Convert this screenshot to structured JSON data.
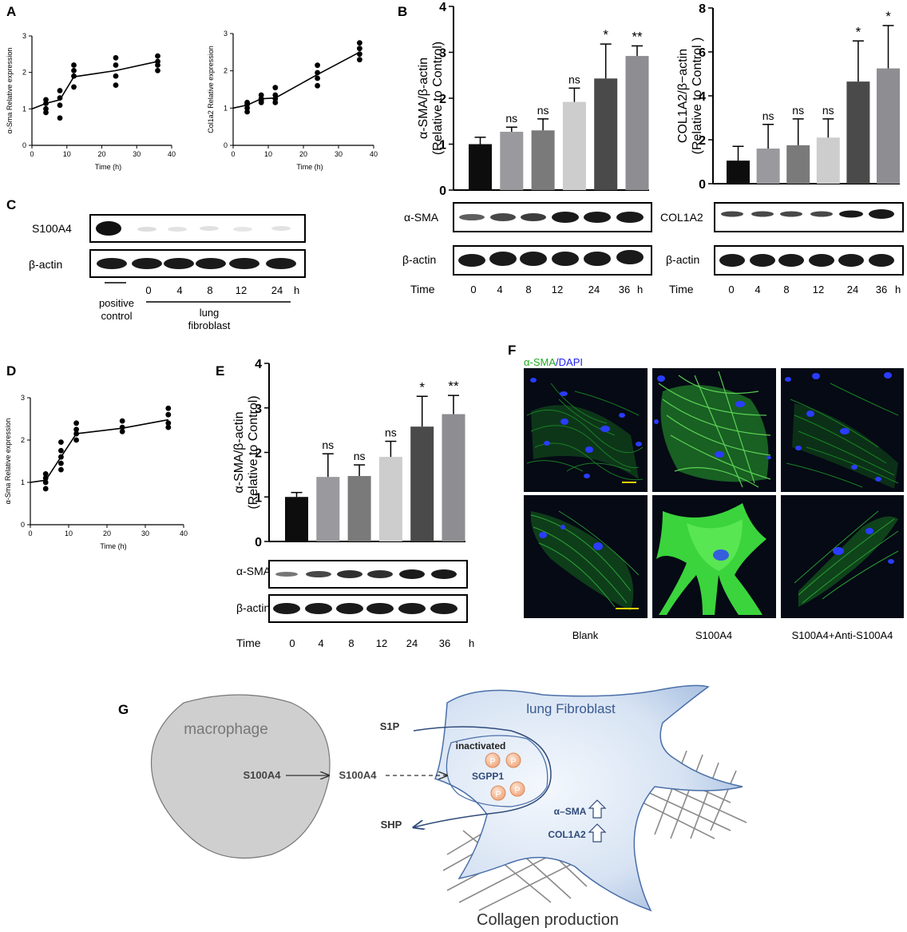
{
  "panels": {
    "A": "A",
    "B": "B",
    "C": "C",
    "D": "D",
    "E": "E",
    "F": "F",
    "G": "G"
  },
  "colors": {
    "bar_0": "#0d0d0d",
    "bar_4": "#9a9a9e",
    "bar_8": "#7a7a7a",
    "bar_12": "#cdcdcd",
    "bar_24": "#4a4a4a",
    "bar_36": "#8e8e92",
    "alpha_sma_green": "#22aa22",
    "dapi_blue": "#2222ee",
    "cell_fill": "#c9d9ee",
    "scale_bar": "#e6d200"
  },
  "chart_data": [
    {
      "id": "A1",
      "type": "scatter",
      "ylabel": "α-Sma Relative expression",
      "xlabel": "Time (h)",
      "xlim": [
        0,
        40
      ],
      "ylim": [
        0,
        3
      ],
      "xticks": [
        "0",
        "10",
        "20",
        "30",
        "40"
      ],
      "yticks": [
        "0",
        "1",
        "2",
        "3"
      ],
      "points": [
        [
          4,
          1.0
        ],
        [
          4,
          1.15
        ],
        [
          4,
          1.25
        ],
        [
          4,
          0.9
        ],
        [
          8,
          1.3
        ],
        [
          8,
          1.5
        ],
        [
          8,
          1.1
        ],
        [
          8,
          0.75
        ],
        [
          12,
          1.6
        ],
        [
          12,
          1.9
        ],
        [
          12,
          2.05
        ],
        [
          12,
          2.2
        ],
        [
          24,
          1.65
        ],
        [
          24,
          1.9
        ],
        [
          24,
          2.2
        ],
        [
          24,
          2.4
        ],
        [
          36,
          2.2
        ],
        [
          36,
          2.3
        ],
        [
          36,
          2.45
        ],
        [
          36,
          2.05
        ]
      ],
      "fit": [
        [
          0,
          1.0
        ],
        [
          4,
          1.15
        ],
        [
          8,
          1.25
        ],
        [
          12,
          1.88
        ],
        [
          24,
          2.05
        ],
        [
          36,
          2.3
        ]
      ]
    },
    {
      "id": "A2",
      "type": "scatter",
      "ylabel": "Col1a2 Relative expression",
      "xlabel": "Time (h)",
      "xlim": [
        0,
        40
      ],
      "ylim": [
        0,
        3
      ],
      "xticks": [
        "0",
        "10",
        "20",
        "30",
        "40"
      ],
      "yticks": [
        "0",
        "1",
        "2",
        "3"
      ],
      "points": [
        [
          4,
          0.9
        ],
        [
          4,
          1.0
        ],
        [
          4,
          1.1
        ],
        [
          4,
          1.15
        ],
        [
          8,
          1.15
        ],
        [
          8,
          1.25
        ],
        [
          8,
          1.35
        ],
        [
          8,
          1.2
        ],
        [
          12,
          1.15
        ],
        [
          12,
          1.25
        ],
        [
          12,
          1.35
        ],
        [
          12,
          1.55
        ],
        [
          24,
          1.6
        ],
        [
          24,
          1.8
        ],
        [
          24,
          1.95
        ],
        [
          24,
          2.15
        ],
        [
          36,
          2.3
        ],
        [
          36,
          2.45
        ],
        [
          36,
          2.6
        ],
        [
          36,
          2.75
        ]
      ],
      "fit": [
        [
          0,
          1.0
        ],
        [
          4,
          1.08
        ],
        [
          8,
          1.25
        ],
        [
          12,
          1.27
        ],
        [
          24,
          1.9
        ],
        [
          36,
          2.5
        ]
      ]
    },
    {
      "id": "B1",
      "type": "bar",
      "ylabel": "α-SMA/β-actin",
      "ylabel2": "(Relative to Control)",
      "ylim": [
        0,
        4
      ],
      "yticks": [
        "0",
        "1",
        "2",
        "3",
        "4"
      ],
      "categories": [
        "0",
        "4",
        "8",
        "12",
        "24",
        "36"
      ],
      "values": [
        1.0,
        1.27,
        1.3,
        1.92,
        2.43,
        2.92
      ],
      "errors": [
        0.15,
        0.1,
        0.25,
        0.3,
        0.75,
        0.22
      ],
      "labels": [
        "",
        "ns",
        "ns",
        "ns",
        "*",
        "**"
      ]
    },
    {
      "id": "B2",
      "type": "bar",
      "ylabel": "COL1A2/β−actin",
      "ylabel2": "(Relative to Control )",
      "ylim": [
        0,
        8
      ],
      "yticks": [
        "0",
        "2",
        "4",
        "6",
        "8"
      ],
      "categories": [
        "0",
        "4",
        "8",
        "12",
        "24",
        "36"
      ],
      "values": [
        1.05,
        1.6,
        1.75,
        2.1,
        4.65,
        5.25
      ],
      "errors": [
        0.65,
        1.1,
        1.2,
        0.85,
        1.85,
        1.95
      ],
      "labels": [
        "",
        "ns",
        "ns",
        "ns",
        "*",
        "*"
      ]
    },
    {
      "id": "D",
      "type": "scatter",
      "ylabel": "α-Sma Relative expression",
      "xlabel": "Time (h)",
      "xlim": [
        0,
        40
      ],
      "ylim": [
        0,
        3
      ],
      "xticks": [
        "0",
        "10",
        "20",
        "30",
        "40"
      ],
      "yticks": [
        "0",
        "1",
        "2",
        "3"
      ],
      "points": [
        [
          4,
          0.85
        ],
        [
          4,
          1.0
        ],
        [
          4,
          1.1
        ],
        [
          4,
          1.2
        ],
        [
          8,
          1.3
        ],
        [
          8,
          1.45
        ],
        [
          8,
          1.6
        ],
        [
          8,
          1.75
        ],
        [
          8,
          1.95
        ],
        [
          12,
          2.0
        ],
        [
          12,
          2.15
        ],
        [
          12,
          2.25
        ],
        [
          12,
          2.4
        ],
        [
          24,
          2.2
        ],
        [
          24,
          2.3
        ],
        [
          24,
          2.45
        ],
        [
          36,
          2.3
        ],
        [
          36,
          2.4
        ],
        [
          36,
          2.6
        ],
        [
          36,
          2.75
        ]
      ],
      "fit": [
        [
          0,
          1.0
        ],
        [
          4,
          1.05
        ],
        [
          8,
          1.6
        ],
        [
          12,
          2.15
        ],
        [
          24,
          2.28
        ],
        [
          36,
          2.48
        ]
      ]
    },
    {
      "id": "E",
      "type": "bar",
      "ylabel": "α-SMA/β-actin",
      "ylabel2": "(Relative to Control)",
      "ylim": [
        0,
        4
      ],
      "yticks": [
        "0",
        "1",
        "2",
        "3",
        "4"
      ],
      "categories": [
        "0",
        "4",
        "8",
        "12",
        "24",
        "36"
      ],
      "values": [
        1.0,
        1.45,
        1.47,
        1.9,
        2.58,
        2.86
      ],
      "errors": [
        0.1,
        0.52,
        0.25,
        0.35,
        0.68,
        0.42
      ],
      "labels": [
        "",
        "ns",
        "ns",
        "ns",
        "*",
        "**"
      ]
    }
  ],
  "blots": {
    "C": {
      "row1": "S100A4",
      "row2": "β-actin",
      "lanes": [
        "0",
        "4",
        "8",
        "12",
        "24"
      ],
      "unit": "h",
      "positive": "positive",
      "control": "control",
      "group1": "lung",
      "group2": "fibroblast"
    },
    "B1": {
      "row1": "α-SMA",
      "row2": "β-actin",
      "time": "Time",
      "lanes": [
        "0",
        "4",
        "8",
        "12",
        "24",
        "36"
      ],
      "unit": "h"
    },
    "B2": {
      "row1": "COL1A2",
      "row2": "β-actin",
      "time": "Time",
      "lanes": [
        "0",
        "4",
        "8",
        "12",
        "24",
        "36"
      ],
      "unit": "h"
    },
    "E": {
      "row1": "α-SMA",
      "row2": "β-actin",
      "time": "Time",
      "lanes": [
        "0",
        "4",
        "8",
        "12",
        "24",
        "36"
      ],
      "unit": "h"
    }
  },
  "micrographs": {
    "stain_green": "α-SMA",
    "stain_sep": "/",
    "stain_blue": "DAPI",
    "conditions": [
      "Blank",
      "S100A4",
      "S100A4+Anti-S100A4"
    ]
  },
  "schematic": {
    "macrophage": "macrophage",
    "s100a4_a": "S100A4",
    "s100a4_b": "S100A4",
    "fibroblast": "lung Fibroblast",
    "s1p": "S1P",
    "shp": "SHP",
    "inactivated": "inactivated",
    "sgpp1": "SGPP1",
    "p": "P",
    "alpha_sma": "α–SMA",
    "col1a2": "COL1A2",
    "collagen": "Collagen production"
  }
}
